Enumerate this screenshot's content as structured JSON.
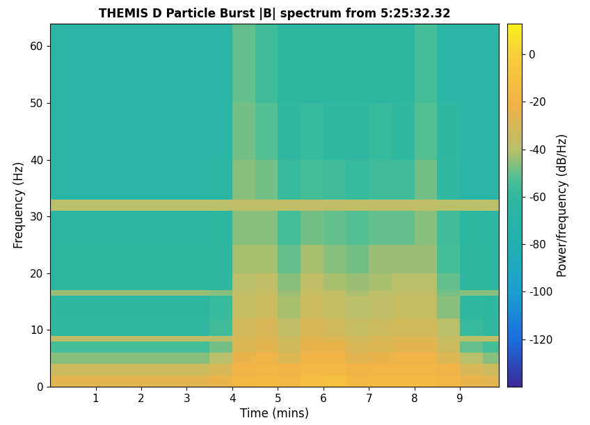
{
  "chart_data": {
    "type": "heatmap",
    "title": "THEMIS D Particle Burst |B| spectrum from 5:25:32.32",
    "x_label": "Time (mins)",
    "y_label": "Frequency (Hz)",
    "xlim": [
      0,
      9.85
    ],
    "xticks": [
      1,
      2,
      3,
      4,
      5,
      6,
      7,
      8,
      9
    ],
    "ylim": [
      0,
      64
    ],
    "yticks": [
      0,
      10,
      20,
      30,
      40,
      50,
      60
    ],
    "x_edges": [
      0,
      0.5,
      1,
      1.5,
      2,
      2.5,
      3,
      3.5,
      4,
      4.5,
      5,
      5.5,
      6,
      6.5,
      7,
      7.5,
      8,
      8.5,
      9,
      9.5,
      9.85
    ],
    "y_edges": [
      0,
      2,
      4,
      6,
      8,
      9,
      12,
      16,
      17,
      20,
      25,
      31,
      33,
      40,
      50,
      64
    ],
    "cells": [
      [
        -26,
        -26,
        -26,
        -26,
        -26,
        -26,
        -26,
        -24,
        -16,
        -14,
        -16,
        -12,
        -10,
        -16,
        -14,
        -14,
        -14,
        -18,
        -24,
        -26
      ],
      [
        -34,
        -34,
        -34,
        -34,
        -34,
        -34,
        -34,
        -30,
        -20,
        -18,
        -22,
        -16,
        -16,
        -20,
        -18,
        -18,
        -18,
        -22,
        -30,
        -34
      ],
      [
        -46,
        -46,
        -46,
        -46,
        -46,
        -46,
        -46,
        -40,
        -24,
        -22,
        -28,
        -20,
        -20,
        -26,
        -24,
        -22,
        -22,
        -28,
        -40,
        -46
      ],
      [
        -54,
        -54,
        -54,
        -54,
        -54,
        -54,
        -54,
        -48,
        -28,
        -26,
        -32,
        -24,
        -24,
        -30,
        -28,
        -26,
        -26,
        -34,
        -50,
        -54
      ],
      [
        -38,
        -38,
        -38,
        -38,
        -38,
        -38,
        -38,
        -40,
        -30,
        -28,
        -34,
        -26,
        -28,
        -32,
        -30,
        -28,
        -28,
        -36,
        -40,
        -38
      ],
      [
        -60,
        -60,
        -60,
        -60,
        -60,
        -60,
        -60,
        -56,
        -32,
        -30,
        -38,
        -30,
        -32,
        -36,
        -34,
        -32,
        -32,
        -40,
        -58,
        -60
      ],
      [
        -62,
        -62,
        -62,
        -62,
        -62,
        -62,
        -62,
        -58,
        -36,
        -34,
        -42,
        -34,
        -36,
        -40,
        -38,
        -36,
        -36,
        -46,
        -60,
        -62
      ],
      [
        -44,
        -44,
        -44,
        -44,
        -44,
        -44,
        -44,
        -46,
        -38,
        -36,
        -44,
        -36,
        -38,
        -42,
        -40,
        -38,
        -38,
        -48,
        -46,
        -46
      ],
      [
        -64,
        -64,
        -64,
        -64,
        -64,
        -64,
        -64,
        -62,
        -40,
        -38,
        -46,
        -38,
        -42,
        -44,
        -42,
        -40,
        -40,
        -50,
        -62,
        -64
      ],
      [
        -64,
        -64,
        -64,
        -64,
        -64,
        -64,
        -64,
        -63,
        -42,
        -42,
        -50,
        -42,
        -46,
        -48,
        -44,
        -44,
        -44,
        -54,
        -63,
        -64
      ],
      [
        -65,
        -65,
        -65,
        -65,
        -65,
        -65,
        -65,
        -64,
        -46,
        -46,
        -54,
        -48,
        -50,
        -52,
        -50,
        -50,
        -46,
        -56,
        -64,
        -65
      ],
      [
        -40,
        -40,
        -40,
        -40,
        -40,
        -40,
        -40,
        -40,
        -38,
        -38,
        -38,
        -38,
        -38,
        -38,
        -38,
        -38,
        -38,
        -40,
        -40,
        -40
      ],
      [
        -66,
        -66,
        -66,
        -66,
        -66,
        -66,
        -66,
        -65,
        -46,
        -48,
        -58,
        -54,
        -56,
        -58,
        -56,
        -56,
        -48,
        -60,
        -66,
        -66
      ],
      [
        -66,
        -66,
        -66,
        -66,
        -66,
        -66,
        -66,
        -66,
        -48,
        -52,
        -60,
        -58,
        -60,
        -60,
        -58,
        -60,
        -52,
        -62,
        -66,
        -66
      ],
      [
        -67,
        -67,
        -67,
        -67,
        -67,
        -67,
        -67,
        -67,
        -50,
        -56,
        -64,
        -64,
        -64,
        -64,
        -64,
        -64,
        -54,
        -66,
        -67,
        -67
      ]
    ],
    "colorbar_label": "Power/frequency (dB/Hz)",
    "colorbar_lim": [
      -140,
      13
    ],
    "colorbar_ticks": [
      0,
      -20,
      -40,
      -60,
      -80,
      -100,
      -120
    ]
  }
}
